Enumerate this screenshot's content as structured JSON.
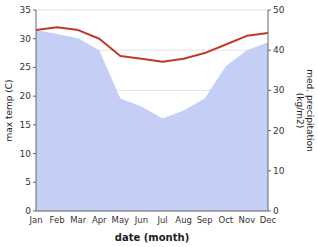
{
  "chart_data": {
    "type": "line",
    "categories": [
      "Jan",
      "Feb",
      "Mar",
      "Apr",
      "May",
      "Jun",
      "Jul",
      "Aug",
      "Sep",
      "Oct",
      "Nov",
      "Dec"
    ],
    "xlabel": "date (month)",
    "ylabel": "max temp (C)",
    "y2label": "med. precipitation\n(kg/m2)",
    "ylim": [
      0,
      35
    ],
    "yticks": [
      0,
      5,
      10,
      15,
      20,
      25,
      30,
      35
    ],
    "y2lim": [
      0,
      50
    ],
    "y2ticks": [
      0,
      10,
      20,
      30,
      40,
      50
    ],
    "grid": true,
    "series": [
      {
        "type": "area",
        "axis": "y2",
        "color": "#c5cff5",
        "values": [
          45.0,
          44.0,
          43.0,
          40.0,
          28.0,
          26.0,
          23.0,
          25.0,
          28.0,
          36.0,
          40.0,
          42.0
        ]
      },
      {
        "type": "line",
        "color": "#c0392b",
        "values": [
          31.5,
          32.0,
          31.5,
          30.0,
          27.0,
          26.5,
          26.0,
          26.5,
          27.5,
          29.0,
          30.5,
          31.0
        ]
      }
    ]
  }
}
